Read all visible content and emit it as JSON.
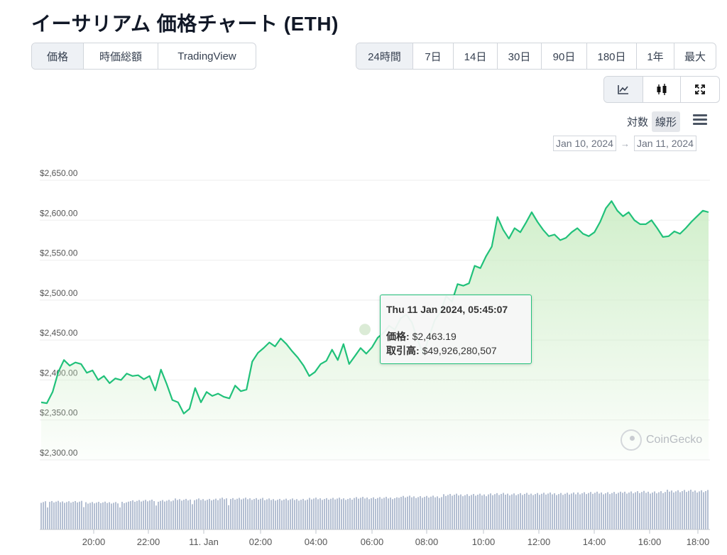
{
  "title": "イーサリアム 価格チャート (ETH)",
  "tabs": [
    {
      "label": "価格",
      "active": true
    },
    {
      "label": "時価総額",
      "active": false
    },
    {
      "label": "TradingView",
      "active": false
    }
  ],
  "ranges": [
    {
      "label": "24時間",
      "active": true
    },
    {
      "label": "7日",
      "active": false
    },
    {
      "label": "14日",
      "active": false
    },
    {
      "label": "30日",
      "active": false
    },
    {
      "label": "90日",
      "active": false
    },
    {
      "label": "180日",
      "active": false
    },
    {
      "label": "1年",
      "active": false
    },
    {
      "label": "最大",
      "active": false
    }
  ],
  "chart_types": [
    {
      "icon": "line-chart-icon",
      "active": true
    },
    {
      "icon": "candlestick-icon",
      "active": false
    },
    {
      "icon": "expand-icon",
      "active": false
    }
  ],
  "scale": {
    "log_label": "対数",
    "linear_label": "線形",
    "active": "linear"
  },
  "date_range": {
    "from": "Jan 10, 2024",
    "arrow": "→",
    "to": "Jan 11, 2024"
  },
  "tooltip": {
    "time": "Thu 11 Jan 2024, 05:45:07",
    "price_label": "価格:",
    "price_value": "$2,463.19",
    "volume_label": "取引高:",
    "volume_value": "$49,926,280,507"
  },
  "watermark": "CoinGecko",
  "colors": {
    "line": "#21c17a",
    "area_top": "#cfeec8",
    "grid": "#eeeeee",
    "volume": "#b4bfd2"
  },
  "chart_data": {
    "type": "area",
    "series": [
      {
        "values": [
          2372,
          2371,
          2385,
          2410,
          2425,
          2418,
          2422,
          2420,
          2409,
          2412,
          2400,
          2405,
          2396,
          2402,
          2400,
          2408,
          2405,
          2406,
          2401,
          2405,
          2387,
          2413,
          2395,
          2375,
          2372,
          2358,
          2364,
          2390,
          2372,
          2385,
          2380,
          2383,
          2379,
          2377,
          2393,
          2386,
          2388,
          2423,
          2434,
          2440,
          2447,
          2442,
          2452,
          2445,
          2436,
          2428,
          2418,
          2405,
          2410,
          2420,
          2424,
          2438,
          2425,
          2445,
          2420,
          2430,
          2440,
          2433,
          2441,
          2453,
          2459,
          2468,
          2463,
          2477,
          2482,
          2472,
          2450,
          2432,
          2454,
          2475,
          2485,
          2505,
          2498,
          2520,
          2518,
          2521,
          2543,
          2540,
          2555,
          2567,
          2604,
          2588,
          2577,
          2590,
          2585,
          2597,
          2610,
          2598,
          2588,
          2580,
          2582,
          2575,
          2578,
          2585,
          2590,
          2583,
          2580,
          2585,
          2598,
          2615,
          2624,
          2612,
          2605,
          2610,
          2600,
          2595,
          2595,
          2600,
          2590,
          2579,
          2580,
          2586,
          2583,
          2590,
          2598,
          2605,
          2612,
          2610
        ]
      }
    ],
    "x_start": "2024-01-10 18:40",
    "x_end": "2024-01-11 18:10",
    "x_ticks": [
      "20:00",
      "22:00",
      "11. Jan",
      "02:00",
      "04:00",
      "06:00",
      "08:00",
      "10:00",
      "12:00",
      "14:00",
      "16:00",
      "18:00"
    ],
    "y_ticks": [
      "$2,300.00",
      "$2,350.00",
      "$2,400.00",
      "$2,450.00",
      "$2,500.00",
      "$2,550.00",
      "$2,600.00",
      "$2,650.00"
    ],
    "ylim": [
      2300,
      2650
    ],
    "volume_relative": [
      0.72,
      0.7,
      0.75,
      0.78,
      0.8,
      0.78,
      0.8,
      0.82,
      0.85,
      0.9,
      0.92,
      0.93,
      0.95,
      0.97,
      1.0
    ],
    "grid": true,
    "legend": "none"
  }
}
